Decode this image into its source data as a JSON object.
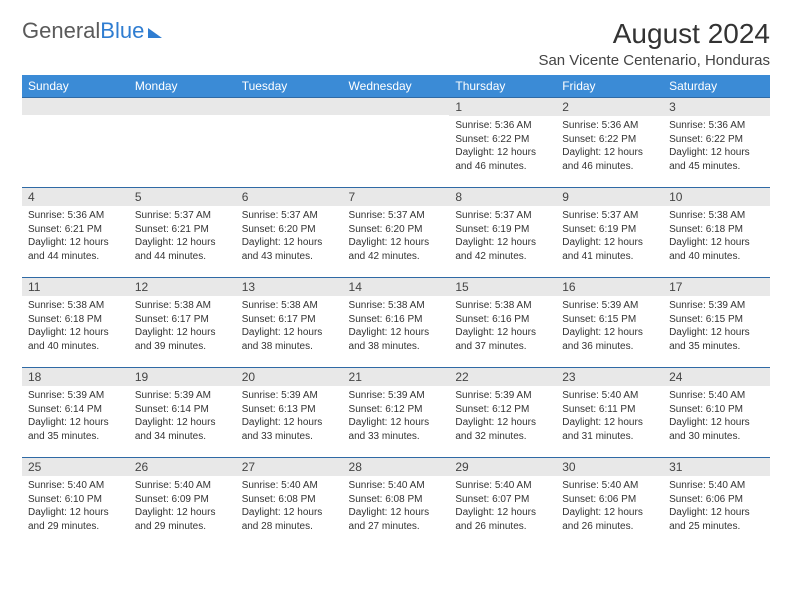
{
  "brand": {
    "part1": "General",
    "part2": "Blue"
  },
  "title": "August 2024",
  "location": "San Vicente Centenario, Honduras",
  "colors": {
    "header_bg": "#3b8bd6",
    "header_text": "#ffffff",
    "daynum_bg": "#e8e8e8",
    "cell_border": "#2f6aa5",
    "brand_gray": "#5a5a5a",
    "brand_blue": "#2f7dd1"
  },
  "day_headers": [
    "Sunday",
    "Monday",
    "Tuesday",
    "Wednesday",
    "Thursday",
    "Friday",
    "Saturday"
  ],
  "weeks": [
    [
      {
        "n": "",
        "sr": "",
        "ss": "",
        "dl": ""
      },
      {
        "n": "",
        "sr": "",
        "ss": "",
        "dl": ""
      },
      {
        "n": "",
        "sr": "",
        "ss": "",
        "dl": ""
      },
      {
        "n": "",
        "sr": "",
        "ss": "",
        "dl": ""
      },
      {
        "n": "1",
        "sr": "5:36 AM",
        "ss": "6:22 PM",
        "dl": "12 hours and 46 minutes."
      },
      {
        "n": "2",
        "sr": "5:36 AM",
        "ss": "6:22 PM",
        "dl": "12 hours and 46 minutes."
      },
      {
        "n": "3",
        "sr": "5:36 AM",
        "ss": "6:22 PM",
        "dl": "12 hours and 45 minutes."
      }
    ],
    [
      {
        "n": "4",
        "sr": "5:36 AM",
        "ss": "6:21 PM",
        "dl": "12 hours and 44 minutes."
      },
      {
        "n": "5",
        "sr": "5:37 AM",
        "ss": "6:21 PM",
        "dl": "12 hours and 44 minutes."
      },
      {
        "n": "6",
        "sr": "5:37 AM",
        "ss": "6:20 PM",
        "dl": "12 hours and 43 minutes."
      },
      {
        "n": "7",
        "sr": "5:37 AM",
        "ss": "6:20 PM",
        "dl": "12 hours and 42 minutes."
      },
      {
        "n": "8",
        "sr": "5:37 AM",
        "ss": "6:19 PM",
        "dl": "12 hours and 42 minutes."
      },
      {
        "n": "9",
        "sr": "5:37 AM",
        "ss": "6:19 PM",
        "dl": "12 hours and 41 minutes."
      },
      {
        "n": "10",
        "sr": "5:38 AM",
        "ss": "6:18 PM",
        "dl": "12 hours and 40 minutes."
      }
    ],
    [
      {
        "n": "11",
        "sr": "5:38 AM",
        "ss": "6:18 PM",
        "dl": "12 hours and 40 minutes."
      },
      {
        "n": "12",
        "sr": "5:38 AM",
        "ss": "6:17 PM",
        "dl": "12 hours and 39 minutes."
      },
      {
        "n": "13",
        "sr": "5:38 AM",
        "ss": "6:17 PM",
        "dl": "12 hours and 38 minutes."
      },
      {
        "n": "14",
        "sr": "5:38 AM",
        "ss": "6:16 PM",
        "dl": "12 hours and 38 minutes."
      },
      {
        "n": "15",
        "sr": "5:38 AM",
        "ss": "6:16 PM",
        "dl": "12 hours and 37 minutes."
      },
      {
        "n": "16",
        "sr": "5:39 AM",
        "ss": "6:15 PM",
        "dl": "12 hours and 36 minutes."
      },
      {
        "n": "17",
        "sr": "5:39 AM",
        "ss": "6:15 PM",
        "dl": "12 hours and 35 minutes."
      }
    ],
    [
      {
        "n": "18",
        "sr": "5:39 AM",
        "ss": "6:14 PM",
        "dl": "12 hours and 35 minutes."
      },
      {
        "n": "19",
        "sr": "5:39 AM",
        "ss": "6:14 PM",
        "dl": "12 hours and 34 minutes."
      },
      {
        "n": "20",
        "sr": "5:39 AM",
        "ss": "6:13 PM",
        "dl": "12 hours and 33 minutes."
      },
      {
        "n": "21",
        "sr": "5:39 AM",
        "ss": "6:12 PM",
        "dl": "12 hours and 33 minutes."
      },
      {
        "n": "22",
        "sr": "5:39 AM",
        "ss": "6:12 PM",
        "dl": "12 hours and 32 minutes."
      },
      {
        "n": "23",
        "sr": "5:40 AM",
        "ss": "6:11 PM",
        "dl": "12 hours and 31 minutes."
      },
      {
        "n": "24",
        "sr": "5:40 AM",
        "ss": "6:10 PM",
        "dl": "12 hours and 30 minutes."
      }
    ],
    [
      {
        "n": "25",
        "sr": "5:40 AM",
        "ss": "6:10 PM",
        "dl": "12 hours and 29 minutes."
      },
      {
        "n": "26",
        "sr": "5:40 AM",
        "ss": "6:09 PM",
        "dl": "12 hours and 29 minutes."
      },
      {
        "n": "27",
        "sr": "5:40 AM",
        "ss": "6:08 PM",
        "dl": "12 hours and 28 minutes."
      },
      {
        "n": "28",
        "sr": "5:40 AM",
        "ss": "6:08 PM",
        "dl": "12 hours and 27 minutes."
      },
      {
        "n": "29",
        "sr": "5:40 AM",
        "ss": "6:07 PM",
        "dl": "12 hours and 26 minutes."
      },
      {
        "n": "30",
        "sr": "5:40 AM",
        "ss": "6:06 PM",
        "dl": "12 hours and 26 minutes."
      },
      {
        "n": "31",
        "sr": "5:40 AM",
        "ss": "6:06 PM",
        "dl": "12 hours and 25 minutes."
      }
    ]
  ],
  "labels": {
    "sunrise": "Sunrise:",
    "sunset": "Sunset:",
    "daylight": "Daylight:"
  }
}
